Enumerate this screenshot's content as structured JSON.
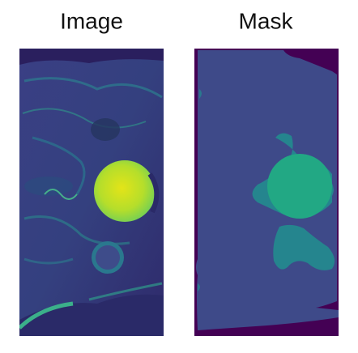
{
  "panels": [
    {
      "title": "Image"
    },
    {
      "title": "Mask"
    }
  ]
}
